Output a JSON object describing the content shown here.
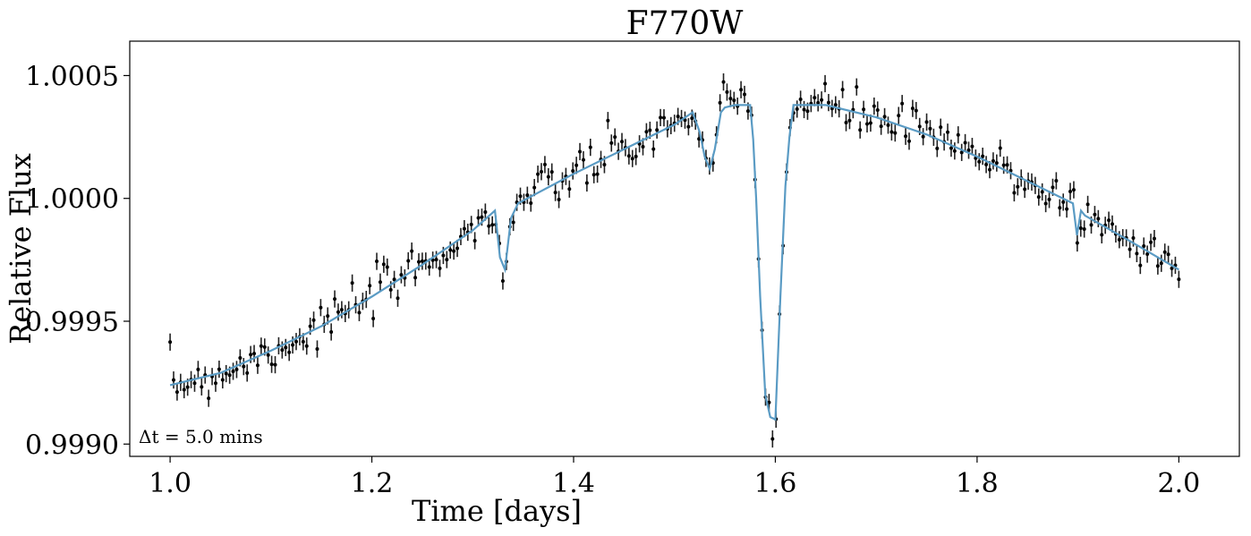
{
  "chart_data": {
    "type": "scatter",
    "title": "F770W",
    "xlabel": "Time [days]",
    "ylabel": "Relative Flux",
    "xlim": [
      0.96,
      2.06
    ],
    "ylim": [
      0.99895,
      1.00064
    ],
    "x_ticks": [
      1.0,
      1.2,
      1.4,
      1.6,
      1.8,
      2.0
    ],
    "x_tick_labels": [
      "1.0",
      "1.2",
      "1.4",
      "1.6",
      "1.8",
      "2.0"
    ],
    "y_ticks": [
      0.999,
      0.9995,
      1.0,
      1.0005
    ],
    "y_tick_labels": [
      "0.9990",
      "0.9995",
      "1.0000",
      "1.0005"
    ],
    "annotation": "Δt = 5.0 mins",
    "grid": false,
    "colors": {
      "data": "#000000",
      "model": "#5a9bc4"
    },
    "series": [
      {
        "kind": "model-line",
        "x": [
          1.0,
          1.05,
          1.1,
          1.15,
          1.2,
          1.25,
          1.3,
          1.322,
          1.327,
          1.332,
          1.338,
          1.345,
          1.4,
          1.45,
          1.5,
          1.518,
          1.525,
          1.53,
          1.535,
          1.54,
          1.546,
          1.55,
          1.56,
          1.575,
          1.578,
          1.581,
          1.585,
          1.59,
          1.595,
          1.6,
          1.605,
          1.61,
          1.614,
          1.618,
          1.65,
          1.7,
          1.75,
          1.8,
          1.85,
          1.895,
          1.899,
          1.903,
          1.907,
          1.95,
          2.0
        ],
        "y": [
          0.99924,
          0.99929,
          0.99938,
          0.99948,
          0.9996,
          0.99973,
          0.99987,
          0.99995,
          0.99976,
          0.99971,
          0.99992,
          0.99998,
          1.0001,
          1.0002,
          1.0003,
          1.00035,
          1.00027,
          1.00017,
          1.00012,
          1.0002,
          1.00035,
          1.00037,
          1.00038,
          1.00038,
          1.00024,
          1.0,
          0.9996,
          0.9992,
          0.99911,
          0.9991,
          0.9996,
          1.00005,
          1.00025,
          1.00038,
          1.00038,
          1.00033,
          1.00026,
          1.00017,
          1.00007,
          0.99998,
          0.99985,
          0.99995,
          0.99993,
          0.99983,
          0.99971
        ]
      }
    ]
  }
}
